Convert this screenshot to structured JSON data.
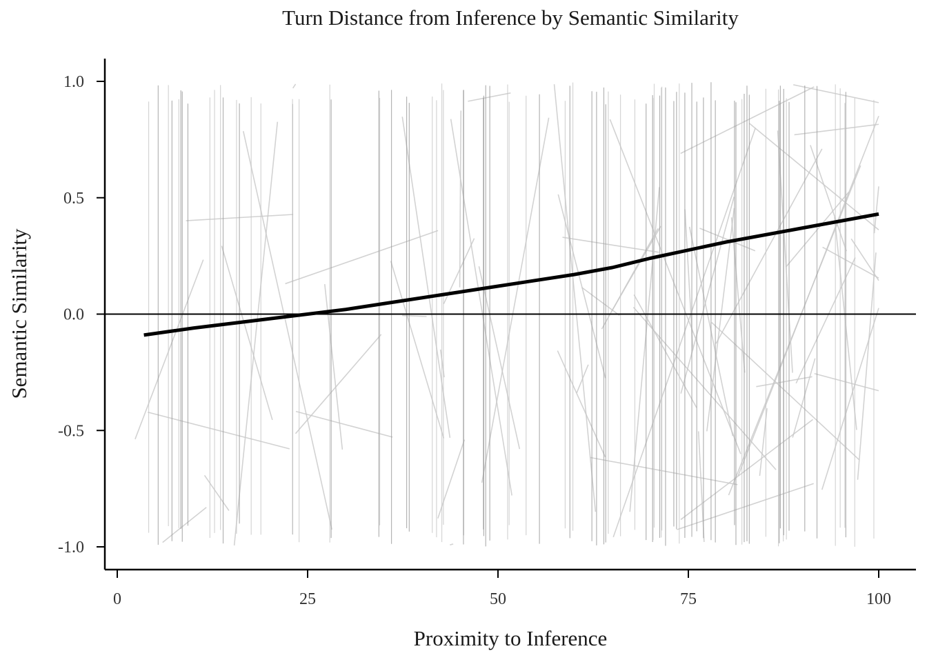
{
  "chart_data": {
    "type": "line",
    "title": "Turn Distance from Inference by Semantic Similarity",
    "xlabel": "Proximity to Inference",
    "ylabel": "Semantic Similarity",
    "xlim": [
      -1,
      105
    ],
    "ylim": [
      -1.1,
      1.1
    ],
    "x_ticks": [
      "0",
      "25",
      "50",
      "75",
      "100"
    ],
    "y_ticks": [
      "-1.0",
      "-0.5",
      "0.0",
      "0.5",
      "1.0"
    ],
    "x_tick_values": [
      0,
      25,
      50,
      75,
      100
    ],
    "y_tick_values": [
      -1.0,
      -0.5,
      0.0,
      0.5,
      1.0
    ],
    "reference_line_y": 0.0,
    "grid": false,
    "series": [
      {
        "role": "fitted-trend",
        "color": "#000000",
        "x": [
          3.5,
          10,
          20,
          30,
          40,
          50,
          60,
          65,
          70,
          80,
          90,
          100
        ],
        "y": [
          -0.09,
          -0.06,
          -0.02,
          0.02,
          0.07,
          0.12,
          0.17,
          0.2,
          0.24,
          0.31,
          0.37,
          0.43
        ]
      }
    ],
    "background_traces": {
      "color": "#c8c8c8",
      "description_visible": false
    }
  }
}
